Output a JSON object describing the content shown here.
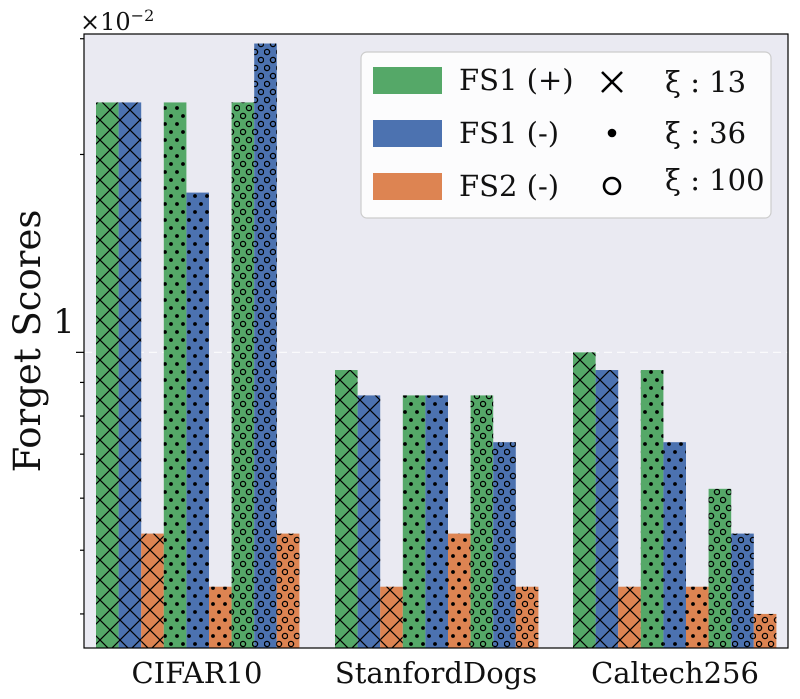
{
  "chart_data": {
    "type": "bar",
    "scale": "log",
    "multiplier_label": "×10",
    "multiplier_exp": "−2",
    "ylabel": "Forget Scores",
    "y_tick_label": "1",
    "y_tick_value": 1,
    "ylim": [
      0.355,
      3.05
    ],
    "categories": [
      "CIFAR10",
      "StanfordDogs",
      "Caltech256"
    ],
    "xi_values": [
      "13",
      "36",
      "100"
    ],
    "series": [
      {
        "name": "FS1 (+)",
        "color": "#55a868",
        "values": {
          "CIFAR10": [
            2.4,
            2.4,
            2.4
          ],
          "StanfordDogs": [
            0.94,
            0.86,
            0.86
          ],
          "Caltech256": [
            1.0,
            0.94,
            0.62
          ]
        }
      },
      {
        "name": "FS1 (-)",
        "color": "#4c72b0",
        "values": {
          "CIFAR10": [
            2.4,
            1.75,
            2.95
          ],
          "StanfordDogs": [
            0.86,
            0.86,
            0.73
          ],
          "Caltech256": [
            0.94,
            0.73,
            0.53
          ]
        }
      },
      {
        "name": "FS2 (-)",
        "color": "#dd8452",
        "values": {
          "CIFAR10": [
            0.53,
            0.44,
            0.53
          ],
          "StanfordDogs": [
            0.44,
            0.53,
            0.44
          ],
          "Caltech256": [
            0.44,
            0.44,
            0.4
          ]
        }
      }
    ],
    "legend": {
      "placement": "top-right",
      "series_labels": [
        "FS1 (+)",
        "FS1 (-)",
        "FS2 (-)"
      ],
      "hatch_labels": [
        "ξ : 13",
        "ξ : 36",
        "ξ : 100"
      ]
    }
  }
}
